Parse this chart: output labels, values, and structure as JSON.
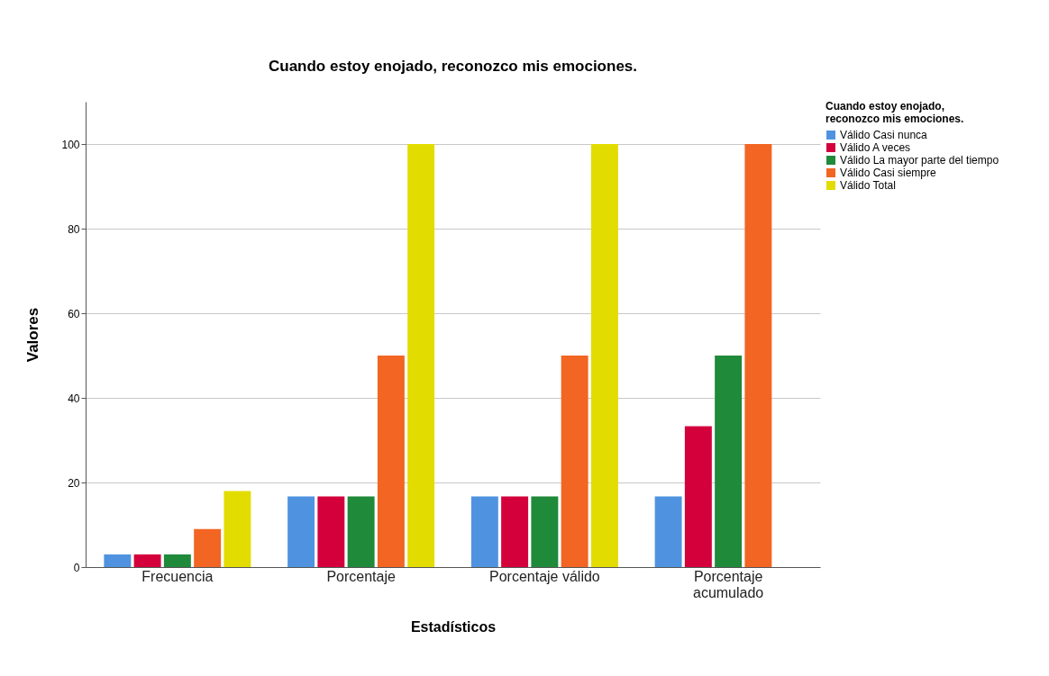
{
  "chart_data": {
    "type": "bar",
    "title": "Cuando estoy enojado, reconozco mis emociones.",
    "xlabel": "Estadísticos",
    "ylabel": "Valores",
    "legend_title": "Cuando estoy enojado, reconozco mis emociones.",
    "legend": "right",
    "categories": [
      "Frecuencia",
      "Porcentaje",
      "Porcentaje válido",
      "Porcentaje acumulado"
    ],
    "series": [
      {
        "name": "Válido Casi nunca",
        "color": "#4f93e0",
        "values": [
          3,
          16.7,
          16.7,
          16.7
        ]
      },
      {
        "name": "Válido A veces",
        "color": "#d3003c",
        "values": [
          3,
          16.7,
          16.7,
          33.3
        ]
      },
      {
        "name": "Válido La mayor parte del tiempo",
        "color": "#1f8a3a",
        "values": [
          3,
          16.7,
          16.7,
          50
        ]
      },
      {
        "name": "Válido Casi siempre",
        "color": "#f26522",
        "values": [
          9,
          50,
          50,
          100
        ]
      },
      {
        "name": "Válido Total",
        "color": "#e3dc00",
        "values": [
          18,
          100,
          100,
          null
        ]
      }
    ],
    "ylim": [
      0,
      110
    ],
    "yticks": [
      0,
      20,
      40,
      60,
      80,
      100
    ],
    "grid": "y"
  }
}
